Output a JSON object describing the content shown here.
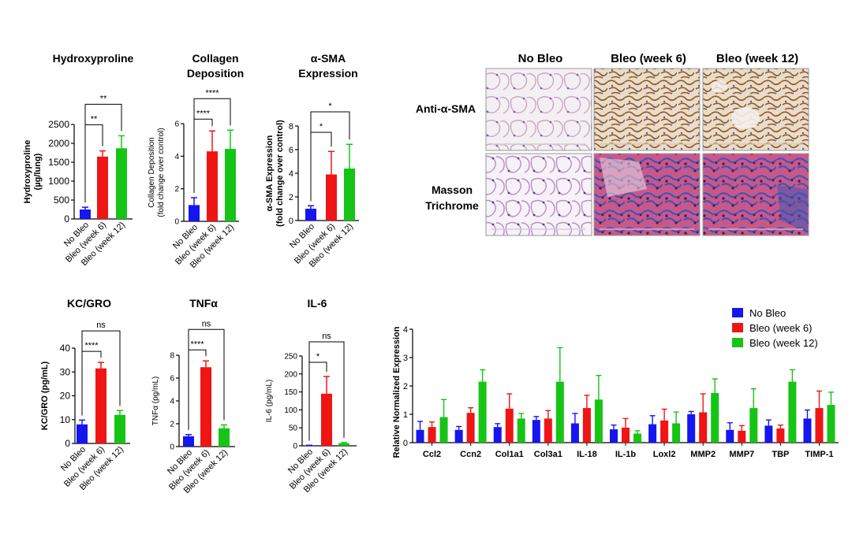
{
  "colors": {
    "no_bleo": "#1515f0",
    "week6": "#f01515",
    "week12": "#15c415"
  },
  "histology": {
    "col_labels": [
      "No Bleo",
      "Bleo (week 6)",
      "Bleo (week 12)"
    ],
    "row_labels": [
      [
        "Anti-α-SMA"
      ],
      [
        "Masson",
        "Trichrome"
      ]
    ]
  },
  "chart_data": [
    {
      "type": "bar",
      "title": [
        "Hydroxyproline"
      ],
      "ylabel": [
        "Hydroxyproline",
        "(µg/lung)"
      ],
      "categories": [
        "No Bleo",
        "Bleo (week 6)",
        "Bleo (week 12)"
      ],
      "values": [
        250,
        1650,
        1870
      ],
      "errors": [
        60,
        150,
        330
      ],
      "ylim": [
        0,
        2500
      ],
      "yticks": [
        0,
        500,
        1000,
        1500,
        2000,
        2500
      ],
      "significance": [
        {
          "from": 0,
          "to": 1,
          "label": "**"
        },
        {
          "from": 0,
          "to": 2,
          "label": "**"
        }
      ]
    },
    {
      "type": "bar",
      "title": [
        "Collagen",
        "Deposition"
      ],
      "ylabel": [
        "Collagen Deposition",
        "(fold change over control)"
      ],
      "categories": [
        "No Bleo",
        "Bleo (week 6)",
        "Bleo (week 12)"
      ],
      "values": [
        1.0,
        4.3,
        4.45
      ],
      "errors": [
        0.45,
        1.25,
        1.15
      ],
      "ylim": [
        0,
        6
      ],
      "yticks": [
        0,
        2,
        4,
        6
      ],
      "significance": [
        {
          "from": 0,
          "to": 1,
          "label": "****"
        },
        {
          "from": 0,
          "to": 2,
          "label": "****"
        }
      ]
    },
    {
      "type": "bar",
      "title": [
        "α-SMA",
        "Expression"
      ],
      "ylabel": [
        "α-SMA Expression",
        "(fold change over control)"
      ],
      "categories": [
        "No Bleo",
        "Bleo (week 6)",
        "Bleo (week 12)"
      ],
      "values": [
        1.0,
        3.9,
        4.4
      ],
      "errors": [
        0.25,
        1.95,
        2.05
      ],
      "ylim": [
        0,
        8
      ],
      "yticks": [
        0,
        2,
        4,
        6,
        8
      ],
      "significance": [
        {
          "from": 0,
          "to": 1,
          "label": "*"
        },
        {
          "from": 0,
          "to": 2,
          "label": "*"
        }
      ]
    },
    {
      "type": "bar",
      "title": [
        "KC/GRO"
      ],
      "ylabel": [
        "KC/GRO (pg/mL)"
      ],
      "categories": [
        "No Bleo",
        "Bleo (week 6)",
        "Bleo (week 12)"
      ],
      "values": [
        8,
        31.5,
        12
      ],
      "errors": [
        1.8,
        2.5,
        1.8
      ],
      "ylim": [
        0,
        40
      ],
      "yticks": [
        0,
        10,
        20,
        30,
        40
      ],
      "significance": [
        {
          "from": 0,
          "to": 1,
          "label": "****"
        },
        {
          "from": 0,
          "to": 2,
          "label": "ns"
        }
      ]
    },
    {
      "type": "bar",
      "title": [
        "TNFα"
      ],
      "ylabel": [
        "TNFα (pg/mL)"
      ],
      "categories": [
        "No Bleo",
        "Bleo (week 6)",
        "Bleo (week 12)"
      ],
      "values": [
        0.9,
        6.95,
        1.6
      ],
      "errors": [
        0.15,
        0.55,
        0.3
      ],
      "ylim": [
        0,
        8
      ],
      "yticks": [
        0,
        2,
        4,
        6,
        8
      ],
      "significance": [
        {
          "from": 0,
          "to": 1,
          "label": "****"
        },
        {
          "from": 0,
          "to": 2,
          "label": "ns"
        }
      ]
    },
    {
      "type": "bar",
      "title": [
        "IL-6"
      ],
      "ylabel": [
        "IL-6 (pg/mL)"
      ],
      "categories": [
        "No Bleo",
        "Bleo (week 6)",
        "Bleo (week 12)"
      ],
      "values": [
        1,
        145,
        7
      ],
      "errors": [
        0.5,
        48,
        2
      ],
      "ylim": [
        0,
        250
      ],
      "yticks": [
        0,
        50,
        100,
        150,
        200,
        250
      ],
      "significance": [
        {
          "from": 0,
          "to": 1,
          "label": "*"
        },
        {
          "from": 0,
          "to": 2,
          "label": "ns"
        }
      ]
    },
    {
      "type": "bar",
      "ylabel": [
        "Relative Normalized Expression"
      ],
      "categories": [
        "Ccl2",
        "Ccn2",
        "Col1a1",
        "Col3a1",
        "IL-18",
        "IL-1b",
        "Loxl2",
        "MMP2",
        "MMP7",
        "TBP",
        "TIMP-1"
      ],
      "ylim": [
        0,
        4
      ],
      "yticks": [
        0,
        1,
        2,
        3,
        4
      ],
      "legend": "top-right",
      "series": [
        {
          "name": "No Bleo",
          "values": [
            0.45,
            0.45,
            0.55,
            0.8,
            0.68,
            0.47,
            0.65,
            1.0,
            0.45,
            0.6,
            0.85
          ],
          "errors": [
            0.3,
            0.12,
            0.12,
            0.12,
            0.35,
            0.15,
            0.3,
            0.1,
            0.25,
            0.2,
            0.3
          ]
        },
        {
          "name": "Bleo (week 6)",
          "values": [
            0.55,
            1.05,
            1.2,
            0.85,
            1.22,
            0.53,
            0.78,
            1.07,
            0.42,
            0.5,
            1.22
          ],
          "errors": [
            0.18,
            0.18,
            0.52,
            0.28,
            0.45,
            0.32,
            0.4,
            0.65,
            0.18,
            0.12,
            0.6
          ]
        },
        {
          "name": "Bleo (week 12)",
          "values": [
            0.9,
            2.15,
            0.85,
            2.15,
            1.52,
            0.32,
            0.68,
            1.75,
            1.22,
            2.15,
            1.33
          ],
          "errors": [
            0.62,
            0.42,
            0.18,
            1.2,
            0.85,
            0.1,
            0.4,
            0.5,
            0.68,
            0.42,
            0.45
          ]
        }
      ]
    }
  ]
}
